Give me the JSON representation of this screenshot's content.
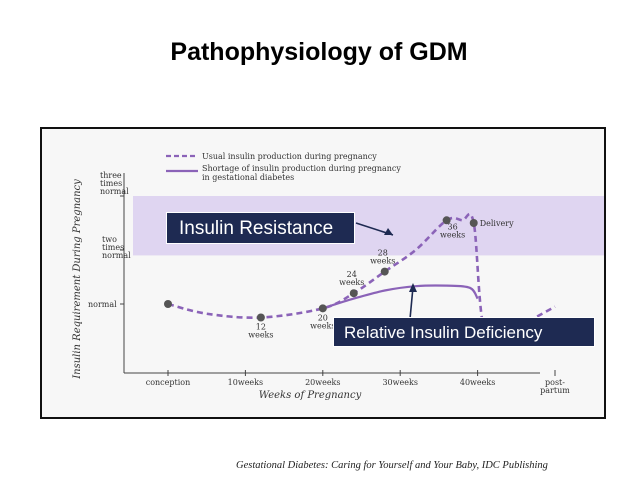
{
  "slide": {
    "title": "Pathophysiology of GDM",
    "caption": "Gestational Diabetes: Caring for Yourself and Your Baby, IDC Publishing"
  },
  "chart_data": {
    "type": "line",
    "ylabel": "Insulin Requirement During Pregnancy",
    "xlabel": "Weeks of Pregnancy",
    "x_ticks": [
      "conception",
      "10weeks",
      "20weeks",
      "30weeks",
      "40weeks",
      "post-partum"
    ],
    "y_ticks": [
      "normal",
      "two times normal",
      "three times normal"
    ],
    "legend": [
      "Usual insulin production during pregnancy",
      "Shortage of insulin production during pregnancy in gestational diabetes"
    ],
    "callouts": {
      "resistance": "Insulin Resistance",
      "deficiency": "Relative Insulin Deficiency"
    },
    "band": {
      "from": 1.9,
      "to": 3.0
    },
    "point_labels": {
      "w12": "12 weeks",
      "w20": "20 weeks",
      "w24": "24 weeks",
      "w28": "28 weeks",
      "w36": "36 weeks",
      "delivery": "Delivery"
    },
    "series": [
      {
        "name": "Usual insulin production during pregnancy",
        "style": "dashed",
        "x": [
          0,
          5,
          12,
          20,
          24,
          28,
          32,
          36,
          38,
          39.5,
          41,
          45,
          50
        ],
        "y": [
          1.0,
          0.82,
          0.75,
          0.92,
          1.2,
          1.6,
          2.0,
          2.55,
          2.55,
          2.5,
          0.45,
          0.58,
          0.95
        ]
      },
      {
        "name": "Shortage of insulin production during pregnancy in gestational diabetes",
        "style": "solid",
        "x": [
          20,
          24,
          28,
          32,
          36,
          39,
          40
        ],
        "y": [
          0.92,
          1.1,
          1.25,
          1.33,
          1.34,
          1.3,
          1.1
        ]
      }
    ],
    "markers": [
      {
        "x": 0,
        "y": 1.0
      },
      {
        "x": 12,
        "y": 0.75
      },
      {
        "x": 20,
        "y": 0.92
      },
      {
        "x": 24,
        "y": 1.2
      },
      {
        "x": 28,
        "y": 1.6
      },
      {
        "x": 36,
        "y": 2.55
      },
      {
        "x": 39.5,
        "y": 2.5
      }
    ],
    "colors": {
      "line": "#8b63b8",
      "band": "#dcd0f0",
      "paper": "#f7f7f7",
      "frame": "#111111",
      "label_box": "#1e2a52"
    }
  }
}
